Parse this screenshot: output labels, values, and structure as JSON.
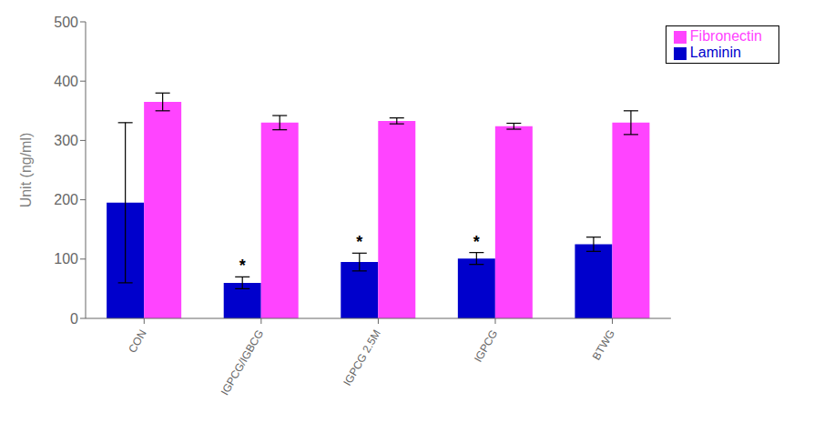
{
  "chart_data": {
    "type": "bar",
    "categories": [
      "CON",
      "IGPCG/IGBCG",
      "IGPCG 2.5M",
      "IGPCG",
      "BTWG"
    ],
    "series": [
      {
        "name": "Laminin",
        "color": "#0000CC",
        "values": [
          195,
          60,
          95,
          101,
          125
        ],
        "errors": [
          135,
          10,
          15,
          10,
          12
        ]
      },
      {
        "name": "Fibronectin",
        "color": "#FF44FF",
        "values": [
          365,
          330,
          333,
          324,
          330
        ],
        "errors": [
          15,
          12,
          5,
          5,
          20
        ]
      }
    ],
    "ylabel": "Unit (ng/ml)",
    "ylim": [
      0,
      500
    ],
    "yticks": [
      0,
      100,
      200,
      300,
      400,
      500
    ],
    "annotations": [
      {
        "text": "*",
        "category": "IGPCG/IGBCG",
        "series": "Laminin"
      },
      {
        "text": "*",
        "category": "IGPCG 2.5M",
        "series": "Laminin"
      },
      {
        "text": "*",
        "category": "IGPCG",
        "series": "Laminin"
      }
    ],
    "legend": "upper right",
    "grid": false
  }
}
